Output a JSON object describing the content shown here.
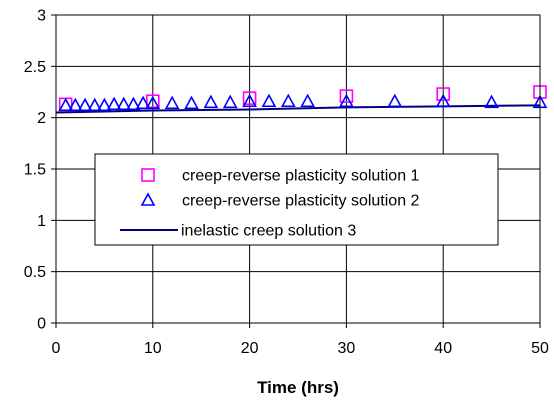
{
  "chart_data": {
    "type": "scatter",
    "title": "",
    "xlabel": "Time (hrs)",
    "ylabel": "",
    "xlim": [
      0,
      50
    ],
    "ylim": [
      0,
      3
    ],
    "x_ticks": [
      "0",
      "10",
      "20",
      "30",
      "40",
      "50"
    ],
    "y_ticks": [
      "0",
      "0.5",
      "1",
      "1.5",
      "2",
      "2.5",
      "3"
    ],
    "grid": true,
    "legend_position": "center",
    "series": [
      {
        "name": "creep-reverse plasticity solution 1",
        "marker": "square",
        "color": "#ff00ff",
        "points": [
          {
            "x": 1,
            "y": 2.13
          },
          {
            "x": 10,
            "y": 2.16
          },
          {
            "x": 20,
            "y": 2.19
          },
          {
            "x": 30,
            "y": 2.21
          },
          {
            "x": 40,
            "y": 2.23
          },
          {
            "x": 50,
            "y": 2.25
          }
        ]
      },
      {
        "name": "creep-reverse plasticity solution 2",
        "marker": "triangle",
        "color": "#0000ff",
        "points": [
          {
            "x": 1,
            "y": 2.12
          },
          {
            "x": 2,
            "y": 2.12
          },
          {
            "x": 3,
            "y": 2.12
          },
          {
            "x": 4,
            "y": 2.12
          },
          {
            "x": 5,
            "y": 2.12
          },
          {
            "x": 6,
            "y": 2.13
          },
          {
            "x": 7,
            "y": 2.13
          },
          {
            "x": 8,
            "y": 2.13
          },
          {
            "x": 9,
            "y": 2.14
          },
          {
            "x": 10,
            "y": 2.14
          },
          {
            "x": 12,
            "y": 2.14
          },
          {
            "x": 14,
            "y": 2.14
          },
          {
            "x": 16,
            "y": 2.15
          },
          {
            "x": 18,
            "y": 2.15
          },
          {
            "x": 20,
            "y": 2.16
          },
          {
            "x": 22,
            "y": 2.16
          },
          {
            "x": 24,
            "y": 2.16
          },
          {
            "x": 26,
            "y": 2.16
          },
          {
            "x": 30,
            "y": 2.16
          },
          {
            "x": 35,
            "y": 2.16
          },
          {
            "x": 40,
            "y": 2.16
          },
          {
            "x": 45,
            "y": 2.15
          },
          {
            "x": 50,
            "y": 2.15
          }
        ]
      },
      {
        "name": "inelastic creep solution 3",
        "marker": "line",
        "color": "#000080",
        "points": [
          {
            "x": 0,
            "y": 2.05
          },
          {
            "x": 5,
            "y": 2.06
          },
          {
            "x": 10,
            "y": 2.07
          },
          {
            "x": 20,
            "y": 2.08
          },
          {
            "x": 30,
            "y": 2.1
          },
          {
            "x": 40,
            "y": 2.11
          },
          {
            "x": 50,
            "y": 2.12
          }
        ]
      }
    ]
  }
}
